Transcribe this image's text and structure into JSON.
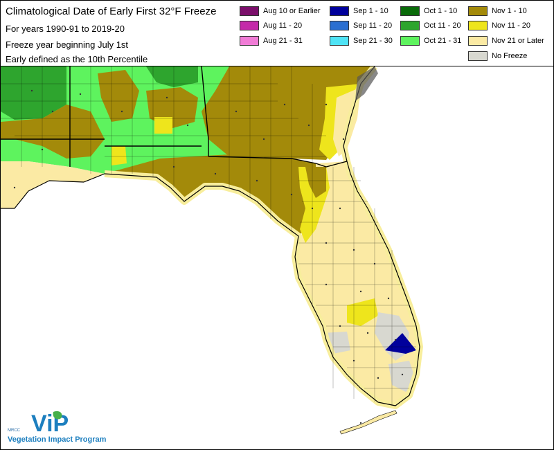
{
  "header": {
    "title": "Climatological Date of Early First 32°F Freeze",
    "subtitle_1": "For years 1990-91 to 2019-20",
    "subtitle_2": "Freeze year beginning July 1st",
    "subtitle_3": "Early defined as the 10th Percentile"
  },
  "legend": [
    {
      "label": "Aug 10 or Earlier",
      "color": "#7b0f6b"
    },
    {
      "label": "Aug 11 - 20",
      "color": "#c42aa9"
    },
    {
      "label": "Aug 21 - 31",
      "color": "#f07cd6"
    },
    {
      "label": "Sep 1 - 10",
      "color": "#00009c"
    },
    {
      "label": "Sep 11 - 20",
      "color": "#2a6fd1"
    },
    {
      "label": "Sep 21 - 30",
      "color": "#4fe3f5"
    },
    {
      "label": "Oct 1 - 10",
      "color": "#0a6b0a"
    },
    {
      "label": "Oct 11 - 20",
      "color": "#2ea52e"
    },
    {
      "label": "Oct 21 - 31",
      "color": "#5ef35e"
    },
    {
      "label": "Nov 1 - 10",
      "color": "#a38a0a"
    },
    {
      "label": "Nov 11 - 20",
      "color": "#eee51c"
    },
    {
      "label": "Nov 21 or Later",
      "color": "#fbeaa4"
    },
    {
      "label": "No Freeze",
      "color": "#d8d8d0"
    }
  ],
  "logo": {
    "mark": "ViP",
    "small_text": "MRCC",
    "caption": "Vegetation Impact Program"
  },
  "colors": {
    "water": "#ffffff",
    "land_outline": "#000000",
    "coast_halo": "#f8ee9c"
  }
}
